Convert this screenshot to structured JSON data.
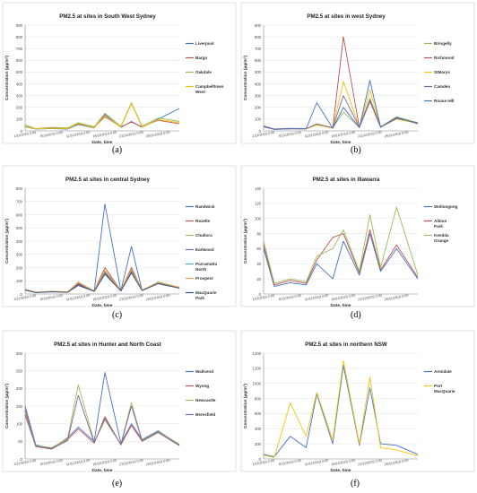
{
  "x_labels": [
    "1/11/2019 0:00",
    "6/11/2019 0:00",
    "11/11/2019 0:00",
    "16/11/2019 0:00",
    "21/11/2019 0:00",
    "26/11/2019 0:00"
  ],
  "xlabel": "Date, time",
  "ylabel": "Concentration (µg/m³)",
  "chart_data": [
    {
      "type": "line",
      "panel": "(a)",
      "title": "PM2.5 at sites in South West Sydney",
      "ylim": [
        0,
        900
      ],
      "yticks": [
        0,
        100,
        200,
        300,
        400,
        500,
        600,
        700,
        800,
        900
      ],
      "x": [
        "1/11/2019 0:00",
        "3/11/2019 0:00",
        "6/11/2019 0:00",
        "9/11/2019 0:00",
        "11/11/2019 0:00",
        "14/11/2019 0:00",
        "16/11/2019 0:00",
        "19/11/2019 0:00",
        "21/11/2019 0:00",
        "23/11/2019 0:00",
        "26/11/2019 0:00",
        "30/11/2019 0:00"
      ],
      "series": [
        {
          "name": "Liverpool",
          "color": "#4472c4",
          "values": [
            35,
            15,
            20,
            15,
            55,
            25,
            140,
            30,
            80,
            30,
            100,
            190
          ]
        },
        {
          "name": "Bargo",
          "color": "#c0504d",
          "values": [
            40,
            18,
            25,
            20,
            60,
            30,
            120,
            35,
            75,
            35,
            90,
            60
          ]
        },
        {
          "name": "Oakdale",
          "color": "#9bbb59",
          "values": [
            50,
            20,
            30,
            25,
            70,
            35,
            150,
            40,
            240,
            40,
            110,
            80
          ]
        },
        {
          "name": "Campbelltown West",
          "color": "#f4c20d",
          "values": [
            38,
            16,
            22,
            18,
            65,
            28,
            130,
            32,
            230,
            32,
            95,
            70
          ]
        }
      ]
    },
    {
      "type": "line",
      "panel": "(b)",
      "title": "PM2.5 at sites in west Sydney",
      "ylim": [
        0,
        900
      ],
      "yticks": [
        0,
        100,
        200,
        300,
        400,
        500,
        600,
        700,
        800,
        900
      ],
      "x": [
        "1/11/2019 0:00",
        "3/11/2019 0:00",
        "6/11/2019 0:00",
        "9/11/2019 0:00",
        "11/11/2019 0:00",
        "14/11/2019 0:00",
        "16/11/2019 0:00",
        "19/11/2019 0:00",
        "21/11/2019 0:00",
        "23/11/2019 0:00",
        "26/11/2019 0:00",
        "30/11/2019 0:00"
      ],
      "series": [
        {
          "name": "Bringelly",
          "color": "#9bbb59",
          "values": [
            40,
            15,
            20,
            18,
            60,
            25,
            160,
            30,
            280,
            35,
            120,
            70
          ]
        },
        {
          "name": "Richmond",
          "color": "#c0504d",
          "values": [
            35,
            12,
            18,
            15,
            55,
            22,
            800,
            28,
            250,
            30,
            110,
            60
          ]
        },
        {
          "name": "StMarys",
          "color": "#f4c20d",
          "values": [
            38,
            14,
            19,
            16,
            50,
            24,
            420,
            29,
            350,
            32,
            100,
            65
          ]
        },
        {
          "name": "Camden",
          "color": "#8064a2",
          "values": [
            42,
            16,
            21,
            19,
            58,
            26,
            300,
            31,
            260,
            33,
            105,
            68
          ]
        },
        {
          "name": "Rouse Hill",
          "color": "#4472c4",
          "values": [
            36,
            13,
            17,
            17,
            240,
            23,
            200,
            27,
            430,
            31,
            115,
            62
          ]
        }
      ]
    },
    {
      "type": "line",
      "panel": "(c)",
      "title": "PM2.5 at sites in central Sydney",
      "ylim": [
        0,
        800
      ],
      "yticks": [
        0,
        100,
        200,
        300,
        400,
        500,
        600,
        700,
        800
      ],
      "x": [
        "1/11/2019 0:00",
        "3/11/2019 0:00",
        "6/11/2019 0:00",
        "9/11/2019 0:00",
        "11/11/2019 0:00",
        "14/11/2019 0:00",
        "16/11/2019 0:00",
        "19/11/2019 0:00",
        "21/11/2019 0:00",
        "23/11/2019 0:00",
        "26/11/2019 0:00",
        "30/11/2019 0:00"
      ],
      "series": [
        {
          "name": "Randwick",
          "color": "#4472c4",
          "values": [
            30,
            12,
            18,
            14,
            80,
            22,
            680,
            25,
            360,
            28,
            90,
            50
          ]
        },
        {
          "name": "Rozelle",
          "color": "#c0504d",
          "values": [
            32,
            13,
            19,
            15,
            75,
            23,
            200,
            26,
            200,
            29,
            85,
            48
          ]
        },
        {
          "name": "Chullora",
          "color": "#9bbb59",
          "values": [
            35,
            14,
            20,
            16,
            90,
            24,
            180,
            27,
            190,
            30,
            88,
            52
          ]
        },
        {
          "name": "Earlwood",
          "color": "#8064a2",
          "values": [
            31,
            12,
            17,
            14,
            70,
            21,
            160,
            24,
            170,
            27,
            80,
            46
          ]
        },
        {
          "name": "Parramatta North",
          "color": "#4bacc6",
          "values": [
            33,
            13,
            18,
            15,
            85,
            22,
            170,
            25,
            180,
            28,
            82,
            49
          ]
        },
        {
          "name": "Prospect",
          "color": "#f79646",
          "values": [
            34,
            14,
            19,
            16,
            88,
            23,
            175,
            26,
            185,
            29,
            86,
            51
          ]
        },
        {
          "name": "MacQuarie Park",
          "color": "#2c4d75",
          "values": [
            29,
            11,
            16,
            13,
            65,
            20,
            150,
            23,
            160,
            26,
            78,
            45
          ]
        }
      ]
    },
    {
      "type": "line",
      "panel": "(d)",
      "title": "PM2.5 at sites in Illawarra",
      "ylim": [
        0,
        140
      ],
      "yticks": [
        0,
        20,
        40,
        60,
        80,
        100,
        120,
        140
      ],
      "x": [
        "1/11/2019 0:00",
        "3/11/2019 0:00",
        "6/11/2019 0:00",
        "9/11/2019 0:00",
        "11/11/2019 0:00",
        "14/11/2019 0:00",
        "16/11/2019 0:00",
        "19/11/2019 0:00",
        "21/11/2019 0:00",
        "23/11/2019 0:00",
        "26/11/2019 0:00",
        "30/11/2019 0:00"
      ],
      "series": [
        {
          "name": "Wollongong",
          "color": "#4472c4",
          "values": [
            60,
            10,
            15,
            12,
            40,
            20,
            70,
            25,
            80,
            30,
            60,
            20
          ]
        },
        {
          "name": "Albion Park",
          "color": "#c0504d",
          "values": [
            65,
            12,
            18,
            14,
            45,
            75,
            80,
            28,
            85,
            32,
            65,
            22
          ]
        },
        {
          "name": "Kembla Grange",
          "color": "#9bbb59",
          "values": [
            70,
            14,
            20,
            16,
            50,
            60,
            85,
            30,
            105,
            35,
            115,
            25
          ]
        }
      ]
    },
    {
      "type": "line",
      "panel": "(e)",
      "title": "PM2.5 at sites in Hunter and North Coast",
      "ylim": [
        0,
        300
      ],
      "yticks": [
        0,
        50,
        100,
        150,
        200,
        250,
        300
      ],
      "x": [
        "1/11/2019 0:00",
        "3/11/2019 0:00",
        "6/11/2019 0:00",
        "9/11/2019 0:00",
        "11/11/2019 0:00",
        "14/11/2019 0:00",
        "16/11/2019 0:00",
        "19/11/2019 0:00",
        "21/11/2019 0:00",
        "23/11/2019 0:00",
        "26/11/2019 0:00",
        "30/11/2019 0:00"
      ],
      "series": [
        {
          "name": "Wallsend",
          "color": "#4472c4",
          "values": [
            150,
            40,
            30,
            60,
            90,
            50,
            245,
            45,
            100,
            55,
            80,
            40
          ]
        },
        {
          "name": "Wyong",
          "color": "#c0504d",
          "values": [
            140,
            35,
            28,
            55,
            85,
            45,
            120,
            40,
            95,
            50,
            75,
            38
          ]
        },
        {
          "name": "Newcastle",
          "color": "#9bbb59",
          "values": [
            130,
            38,
            32,
            58,
            210,
            48,
            110,
            42,
            160,
            52,
            78,
            42
          ]
        },
        {
          "name": "Beresfield",
          "color": "#8064a2",
          "values": [
            125,
            36,
            29,
            52,
            180,
            46,
            115,
            41,
            150,
            51,
            76,
            39
          ]
        }
      ]
    },
    {
      "type": "line",
      "panel": "(f)",
      "title": "PM2.5 at sites in northern NSW",
      "ylim": [
        0,
        1400
      ],
      "yticks": [
        0,
        200,
        400,
        600,
        800,
        1000,
        1200,
        1400
      ],
      "x": [
        "1/11/2019 0:00",
        "3/11/2019 0:00",
        "6/11/2019 0:00",
        "9/11/2019 0:00",
        "11/11/2019 0:00",
        "14/11/2019 0:00",
        "16/11/2019 0:00",
        "19/11/2019 0:00",
        "21/11/2019 0:00",
        "23/11/2019 0:00",
        "26/11/2019 0:00",
        "30/11/2019 0:00"
      ],
      "series": [
        {
          "name": "Armidale",
          "color": "#4472c4",
          "values": [
            60,
            30,
            300,
            150,
            860,
            200,
            1240,
            180,
            940,
            200,
            180,
            60
          ]
        },
        {
          "name": "Port MacQuarie",
          "color": "#f4c20d",
          "values": [
            50,
            20,
            740,
            300,
            880,
            250,
            1300,
            200,
            1080,
            150,
            120,
            40
          ]
        }
      ]
    }
  ]
}
